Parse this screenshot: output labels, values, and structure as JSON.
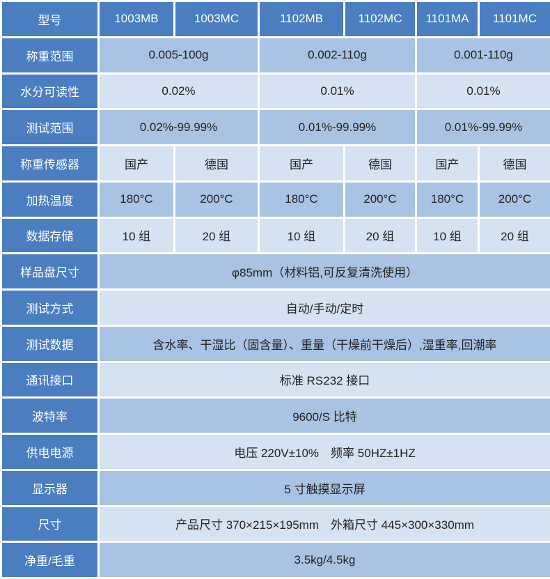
{
  "table": {
    "header": [
      "型号",
      "1003MB",
      "1003MC",
      "1102MB",
      "1102MC",
      "1101MA",
      "1101MC"
    ],
    "rows": [
      {
        "label": "称重范围",
        "cells": [
          "0.005-100g",
          "0.002-110g",
          "0.001-110g"
        ]
      },
      {
        "label": "水分可读性",
        "cells": [
          "0.02%",
          "0.01%",
          "0.01%"
        ]
      },
      {
        "label": "测试范围",
        "cells": [
          "0.02%-99.99%",
          "0.01%-99.99%",
          "0.01%-99.99%"
        ]
      },
      {
        "label": "称重传感器",
        "cells": [
          "国产",
          "德国",
          "国产",
          "德国",
          "国产",
          "德国"
        ]
      },
      {
        "label": "加热温度",
        "cells": [
          "180°C",
          "200°C",
          "180°C",
          "200°C",
          "180°C",
          "200°C"
        ]
      },
      {
        "label": "数据存储",
        "cells": [
          "10 组",
          "20 组",
          "10 组",
          "20 组",
          "10 组",
          "20 组"
        ]
      },
      {
        "label": "样品盘尺寸",
        "cells": [
          "φ85mm（材料铝,可反复清洗使用）"
        ]
      },
      {
        "label": "测试方式",
        "cells": [
          "自动/手动/定时"
        ]
      },
      {
        "label": "测试数据",
        "cells": [
          "含水率、干湿比（固含量）、重量（干燥前干燥后）,湿重率,回潮率"
        ]
      },
      {
        "label": "通讯接口",
        "cells": [
          "标准 RS232 接口"
        ]
      },
      {
        "label": "波特率",
        "cells": [
          "9600/S 比特"
        ]
      },
      {
        "label": "供电电源",
        "cells": [
          "电压 220V±10%　频率 50HZ±1HZ"
        ]
      },
      {
        "label": "显示器",
        "cells": [
          "5 寸触摸显示屏"
        ]
      },
      {
        "label": "尺寸",
        "cells": [
          "产品尺寸 370×215×195mm　外箱尺寸 445×300×330mm"
        ]
      },
      {
        "label": "净重/毛重",
        "cells": [
          "3.5kg/4.5kg"
        ]
      }
    ]
  }
}
